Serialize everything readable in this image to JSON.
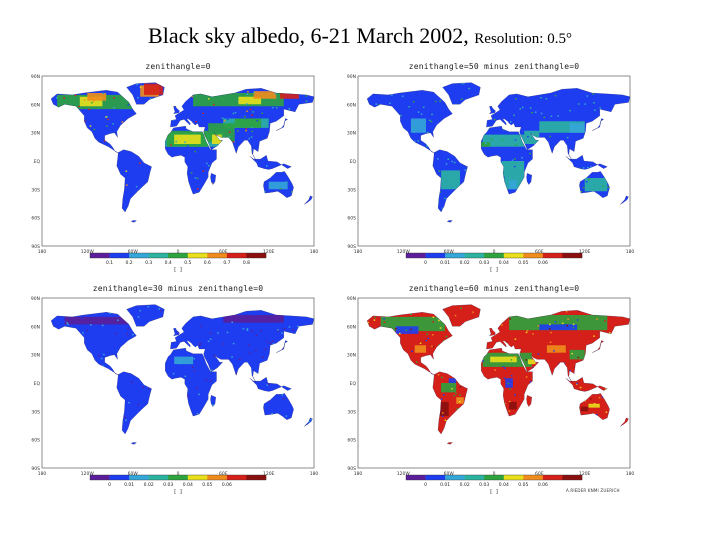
{
  "title": {
    "main": "Black sky albedo, 6-21 March 2002,",
    "resolution": "Resolution: 0.5°"
  },
  "axes": {
    "lat_labels": [
      "90N",
      "60N",
      "30N",
      "EQ",
      "30S",
      "60S",
      "90S"
    ],
    "lon_labels": [
      "180",
      "120W",
      "60W",
      "0",
      "60E",
      "120E",
      "180"
    ]
  },
  "colors": {
    "violet": "#5a1e9a",
    "blue": "#1f3df0",
    "cyan": "#34a6d8",
    "teal": "#2bb3a0",
    "green": "#2ea33e",
    "yellow": "#e8e01c",
    "orange": "#f08c1c",
    "red": "#d42018",
    "darkred": "#8a1010"
  },
  "panels": [
    {
      "label": "zenithangle=0",
      "unit": "[ ]",
      "scale_colors": [
        "#5a1e9a",
        "#1f3df0",
        "#34a6d8",
        "#2bb3a0",
        "#2ea33e",
        "#e8e01c",
        "#f08c1c",
        "#d42018",
        "#8a1010"
      ],
      "scale_ticks": [
        "0.1",
        "0.2",
        "0.3",
        "0.4",
        "0.5",
        "0.6",
        "0.7",
        "0.8"
      ],
      "scheme": "albedo"
    },
    {
      "label": "zenithangle=50  minus  zenithangle=0",
      "unit": "[ ]",
      "scale_colors": [
        "#5a1e9a",
        "#1f3df0",
        "#34a6d8",
        "#2bb3a0",
        "#2ea33e",
        "#e8e01c",
        "#f08c1c",
        "#d42018",
        "#8a1010"
      ],
      "scale_ticks": [
        "0",
        "0.01",
        "0.02",
        "0.03",
        "0.04",
        "0.05",
        "0.06"
      ],
      "scheme": "diff50"
    },
    {
      "label": "zenithangle=30  minus  zenithangle=0",
      "unit": "[ ]",
      "scale_colors": [
        "#5a1e9a",
        "#1f3df0",
        "#34a6d8",
        "#2bb3a0",
        "#2ea33e",
        "#e8e01c",
        "#f08c1c",
        "#d42018",
        "#8a1010"
      ],
      "scale_ticks": [
        "0",
        "0.01",
        "0.02",
        "0.03",
        "0.04",
        "0.05",
        "0.06"
      ],
      "scheme": "diff30"
    },
    {
      "label": "zenithangle=60  minus  zenithangle=0",
      "unit": "[ ]",
      "scale_colors": [
        "#5a1e9a",
        "#1f3df0",
        "#34a6d8",
        "#2bb3a0",
        "#2ea33e",
        "#e8e01c",
        "#f08c1c",
        "#d42018",
        "#8a1010"
      ],
      "scale_ticks": [
        "0",
        "0.01",
        "0.02",
        "0.03",
        "0.04",
        "0.05",
        "0.06"
      ],
      "scheme": "diff60"
    }
  ],
  "credit": "A.RIEDER KNMI ZUERICH"
}
